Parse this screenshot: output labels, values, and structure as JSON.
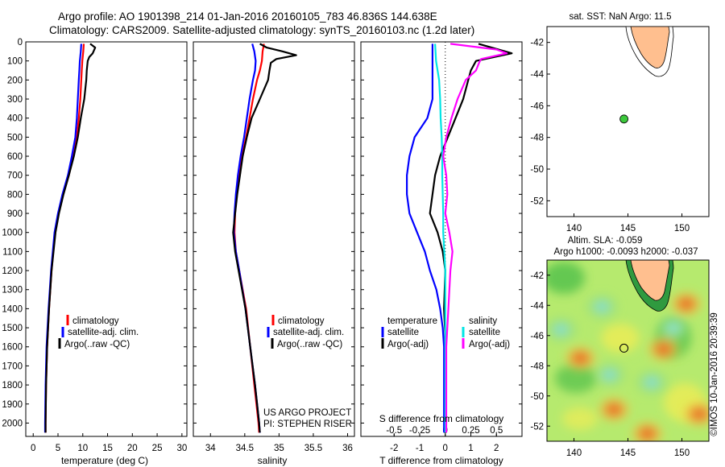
{
  "header": {
    "line1": "Argo profile: AO 1901398_214 01-Jan-2016 20160105_783 46.836S 144.638E",
    "line2": "Climatology: CARS2009. Satellite-adjusted climatology: synTS_20160103.nc (1.2d later)"
  },
  "credits": {
    "project": "US ARGO PROJECT",
    "pi": "PI: STEPHEN RISER"
  },
  "watermark": "©IMOS 10-Jan-2016 20:39:39",
  "colors": {
    "climatology": "#ff0000",
    "satellite": "#0000ff",
    "argo": "#000000",
    "sat_salinity": "#00e5e5",
    "argo_salinity": "#ff00ff",
    "land": "#ffbf8f",
    "float": "#3cc83c"
  },
  "depth_axis": {
    "ylim": [
      2070,
      0
    ],
    "ticks": [
      0,
      100,
      200,
      300,
      400,
      500,
      600,
      700,
      800,
      900,
      1000,
      1100,
      1200,
      1300,
      1400,
      1500,
      1600,
      1700,
      1800,
      1900,
      2000
    ]
  },
  "chart_data": [
    {
      "type": "line",
      "id": "temperature",
      "xlabel": "temperature (deg C)",
      "xlim": [
        -1.5,
        31
      ],
      "xticks": [
        0,
        5,
        10,
        15,
        20,
        25,
        30
      ],
      "legend": [
        "climatology",
        "satellite-adj. clim.",
        "Argo(..raw -QC)"
      ],
      "series": [
        {
          "name": "climatology",
          "color": "#ff0000",
          "depth": [
            10,
            50,
            100,
            150,
            200,
            300,
            400,
            500,
            600,
            700,
            800,
            900,
            1000,
            1200,
            1400,
            1600,
            1800,
            2000,
            2050
          ],
          "values": [
            10.2,
            10.1,
            9.9,
            9.8,
            9.7,
            9.5,
            9.2,
            8.8,
            8.0,
            7.2,
            6.0,
            5.1,
            4.4,
            3.7,
            3.2,
            2.8,
            2.6,
            2.5,
            2.5
          ]
        },
        {
          "name": "satellite-adj. clim.",
          "color": "#0000ff",
          "depth": [
            10,
            50,
            100,
            150,
            200,
            300,
            400,
            500,
            600,
            700,
            800,
            900,
            1000,
            1200,
            1400,
            1600,
            1800,
            2000,
            2050
          ],
          "values": [
            9.7,
            9.6,
            9.4,
            9.3,
            9.2,
            9.0,
            8.8,
            8.5,
            7.8,
            7.0,
            5.9,
            5.0,
            4.3,
            3.6,
            3.1,
            2.7,
            2.5,
            2.4,
            2.4
          ]
        },
        {
          "name": "Argo(..raw -QC)",
          "color": "#000000",
          "depth": [
            10,
            30,
            60,
            80,
            100,
            150,
            200,
            300,
            400,
            500,
            600,
            700,
            800,
            900,
            1000,
            1200,
            1400,
            1600,
            1800,
            2000,
            2050
          ],
          "values": [
            11.5,
            12.5,
            12.0,
            11.3,
            11.0,
            10.8,
            10.7,
            10.3,
            9.6,
            9.0,
            8.2,
            7.2,
            6.1,
            5.2,
            4.5,
            3.7,
            3.2,
            2.8,
            2.6,
            2.5,
            2.5
          ]
        }
      ]
    },
    {
      "type": "line",
      "id": "salinity",
      "xlabel": "salinity",
      "xlim": [
        33.75,
        36.1
      ],
      "xticks": [
        34,
        34.5,
        35,
        35.5,
        36
      ],
      "legend": [
        "climatology",
        "satellite-adj. clim.",
        "Argo(..raw -QC)"
      ],
      "series": [
        {
          "name": "climatology",
          "color": "#ff0000",
          "depth": [
            10,
            50,
            100,
            150,
            200,
            300,
            400,
            500,
            600,
            700,
            800,
            900,
            1000,
            1100,
            1200,
            1400,
            1600,
            1800,
            2000,
            2050
          ],
          "values": [
            34.78,
            34.76,
            34.75,
            34.72,
            34.68,
            34.62,
            34.57,
            34.52,
            34.46,
            34.42,
            34.38,
            34.36,
            34.35,
            34.37,
            34.42,
            34.52,
            34.58,
            34.64,
            34.7,
            34.71
          ]
        },
        {
          "name": "satellite-adj. clim.",
          "color": "#0000ff",
          "depth": [
            10,
            50,
            100,
            150,
            200,
            300,
            400,
            500,
            600,
            700,
            800,
            900,
            1000,
            1100,
            1200,
            1400,
            1600,
            1800,
            2000,
            2050
          ],
          "values": [
            34.61,
            34.64,
            34.66,
            34.65,
            34.62,
            34.57,
            34.53,
            34.49,
            34.44,
            34.4,
            34.37,
            34.35,
            34.34,
            34.37,
            34.42,
            34.51,
            34.58,
            34.65,
            34.71,
            34.72
          ]
        },
        {
          "name": "Argo(..raw -QC)",
          "color": "#000000",
          "depth": [
            10,
            30,
            50,
            70,
            90,
            110,
            150,
            200,
            300,
            400,
            500,
            600,
            700,
            800,
            900,
            1000,
            1100,
            1200,
            1400,
            1600,
            1800,
            2000,
            2050
          ],
          "values": [
            34.72,
            34.82,
            35.05,
            35.25,
            34.96,
            34.88,
            34.86,
            34.84,
            34.72,
            34.6,
            34.53,
            34.47,
            34.43,
            34.39,
            34.36,
            34.33,
            34.36,
            34.41,
            34.51,
            34.58,
            34.65,
            34.71,
            34.72
          ]
        }
      ]
    },
    {
      "type": "line",
      "id": "difference",
      "xlabel": "T difference from climatology",
      "xlim": [
        -3.3,
        3.0
      ],
      "xticks": [
        -2,
        -1,
        0,
        1,
        2
      ],
      "top_axis": {
        "label": "S difference from climatology",
        "ticks": [
          {
            "value": -0.5,
            "label": "-0.5"
          },
          {
            "value": -0.25,
            "label": "-0.25"
          },
          {
            "value": 0,
            "label": "0"
          },
          {
            "value": 0.25,
            "label": "0.25"
          },
          {
            "value": 0.5,
            "label": "0.5"
          }
        ]
      },
      "legend_temperature": {
        "title": "temperature",
        "items": [
          "satellite",
          "Argo(-adj)"
        ]
      },
      "legend_salinity": {
        "title": "salinity",
        "items": [
          "satellite",
          "Argo(-adj)"
        ]
      },
      "series": [
        {
          "name": "satellite",
          "group": "temperature",
          "color": "#0000ff",
          "depth": [
            10,
            100,
            200,
            300,
            400,
            500,
            600,
            700,
            800,
            900,
            1000,
            1100,
            1200,
            1300,
            1400,
            1500,
            1600,
            1800,
            2000,
            2050
          ],
          "values": [
            -0.5,
            -0.5,
            -0.5,
            -0.5,
            -0.7,
            -1.2,
            -1.4,
            -1.5,
            -1.5,
            -1.4,
            -1.1,
            -0.8,
            -0.6,
            -0.35,
            -0.2,
            -0.1,
            -0.05,
            -0.05,
            -0.05,
            -0.05
          ]
        },
        {
          "name": "Argo(-adj)",
          "group": "temperature",
          "color": "#000000",
          "depth": [
            10,
            60,
            100,
            150,
            200,
            300,
            400,
            500,
            600,
            700,
            800,
            900,
            1000,
            1100,
            1200,
            1400,
            1600,
            1800,
            2000,
            2050
          ],
          "values": [
            1.3,
            2.6,
            1.2,
            1.0,
            0.9,
            0.7,
            0.4,
            0.1,
            -0.2,
            -0.4,
            -0.5,
            -0.6,
            -0.3,
            -0.1,
            0,
            -0.05,
            0.02,
            0.02,
            0.02,
            0.02
          ]
        },
        {
          "name": "satellite",
          "group": "salinity",
          "color": "#00e5e5",
          "depth": [
            10,
            100,
            200,
            300,
            400,
            500,
            600,
            700,
            800,
            900,
            1000,
            1100,
            1200,
            1400,
            1600,
            1800,
            2000,
            2050
          ],
          "values": [
            -0.1,
            -0.09,
            -0.06,
            -0.05,
            -0.045,
            -0.035,
            -0.03,
            -0.03,
            -0.025,
            -0.02,
            -0.02,
            -0.01,
            0,
            0,
            0,
            0,
            0,
            0
          ]
        },
        {
          "name": "Argo(-adj)",
          "group": "salinity",
          "color": "#ff00ff",
          "depth": [
            10,
            40,
            60,
            90,
            110,
            150,
            200,
            300,
            400,
            500,
            600,
            700,
            800,
            900,
            1000,
            1100,
            1200,
            1400,
            1600,
            1800,
            2000,
            2050
          ],
          "values": [
            0.05,
            0.5,
            0.6,
            0.35,
            0.33,
            0.3,
            0.2,
            0.12,
            0.06,
            0.01,
            -0.02,
            0.01,
            0.02,
            0,
            0.04,
            0.07,
            0.05,
            0.03,
            0.01,
            0.01,
            0.01,
            0.01
          ]
        }
      ]
    },
    {
      "type": "scatter",
      "id": "sst-map",
      "title": "sat. SST: NaN Argo: 11.5",
      "xlim": [
        137.5,
        152.5
      ],
      "ylim": [
        -53,
        -41
      ],
      "xticks": [
        140,
        145,
        150
      ],
      "yticks": [
        -42,
        -44,
        -46,
        -48,
        -50,
        -52
      ],
      "float": {
        "lon": 144.638,
        "lat": -46.836
      }
    },
    {
      "type": "heatmap",
      "id": "sla-map",
      "title": "Altim. SLA: -0.059",
      "subtitle": "Argo h1000: -0.0093 h2000: -0.037",
      "xlim": [
        137.5,
        152.5
      ],
      "ylim": [
        -53,
        -41
      ],
      "xticks": [
        140,
        145,
        150
      ],
      "yticks": [
        -42,
        -44,
        -46,
        -48,
        -50,
        -52
      ],
      "float": {
        "lon": 144.638,
        "lat": -46.836
      },
      "features": [
        {
          "lon": 143.3,
          "lat": -48.6,
          "kind": "low"
        },
        {
          "lon": 142.6,
          "lat": -44.1,
          "kind": "low"
        },
        {
          "lon": 147.2,
          "lat": -49.1,
          "kind": "low"
        },
        {
          "lon": 138.8,
          "lat": -45.6,
          "kind": "low"
        },
        {
          "lon": 149.2,
          "lat": -45.5,
          "kind": "low"
        },
        {
          "lon": 143.7,
          "lat": -50.9,
          "kind": "high"
        },
        {
          "lon": 150.4,
          "lat": -43.9,
          "kind": "high"
        },
        {
          "lon": 151.6,
          "lat": -51.2,
          "kind": "high"
        },
        {
          "lon": 140.6,
          "lat": -47.5,
          "kind": "high"
        },
        {
          "lon": 148.3,
          "lat": -46.9,
          "kind": "high"
        },
        {
          "lon": 146.8,
          "lat": -52.5,
          "kind": "high"
        }
      ]
    }
  ]
}
